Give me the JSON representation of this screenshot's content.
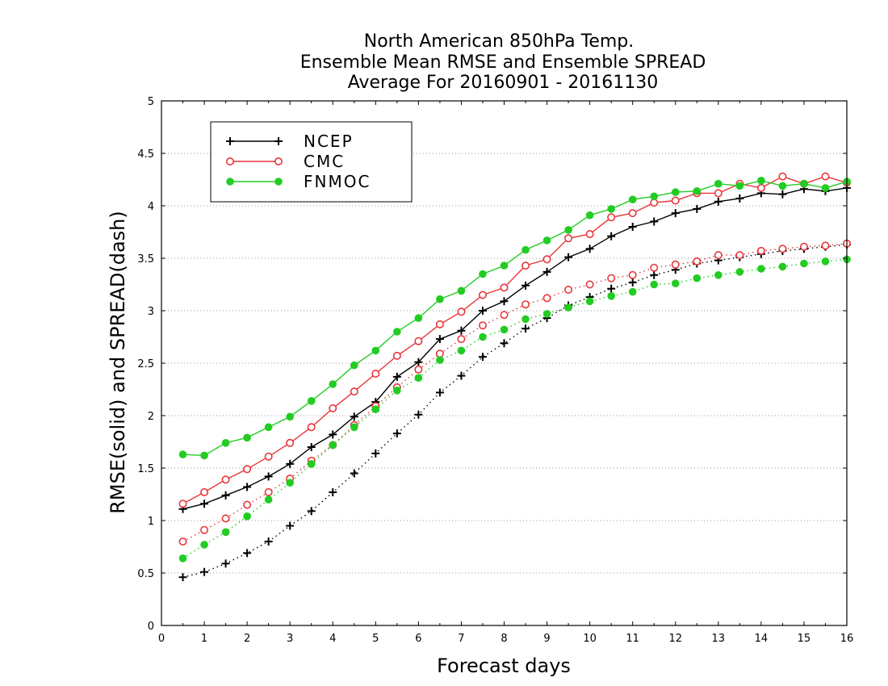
{
  "chart_data": {
    "type": "line",
    "title": [
      "North American 850hPa Temp.",
      "Ensemble Mean RMSE and Ensemble SPREAD",
      "Average For 20160901 - 20161130"
    ],
    "xlabel": "Forecast days",
    "ylabel": "RMSE(solid) and SPREAD(dash)",
    "xlim": [
      0,
      16
    ],
    "ylim": [
      0,
      5
    ],
    "xticks": [
      0,
      1,
      2,
      3,
      4,
      5,
      6,
      7,
      8,
      9,
      10,
      11,
      12,
      13,
      14,
      15,
      16
    ],
    "yticks": [
      0,
      0.5,
      1,
      1.5,
      2,
      2.5,
      3,
      3.5,
      4,
      4.5,
      5
    ],
    "ytick_labels": [
      "0",
      "0.5",
      "1",
      "1.5",
      "2",
      "2.5",
      "3",
      "3.5",
      "4",
      "4.5",
      "5"
    ],
    "grid": "horizontal dotted",
    "legend_position": "top-left",
    "x": [
      0.5,
      1,
      1.5,
      2,
      2.5,
      3,
      3.5,
      4,
      4.5,
      5,
      5.5,
      6,
      6.5,
      7,
      7.5,
      8,
      8.5,
      9,
      9.5,
      10,
      10.5,
      11,
      11.5,
      12,
      12.5,
      13,
      13.5,
      14,
      14.5,
      15,
      15.5,
      16
    ],
    "series": [
      {
        "name": "NCEP",
        "metric": "RMSE",
        "color": "#000000",
        "marker": "plus",
        "line": "solid",
        "values": [
          1.11,
          1.16,
          1.24,
          1.32,
          1.42,
          1.54,
          1.7,
          1.82,
          1.99,
          2.13,
          2.37,
          2.51,
          2.73,
          2.81,
          3.0,
          3.09,
          3.24,
          3.37,
          3.51,
          3.59,
          3.71,
          3.8,
          3.85,
          3.93,
          3.97,
          4.04,
          4.07,
          4.12,
          4.11,
          4.16,
          4.14,
          4.17
        ]
      },
      {
        "name": "CMC",
        "metric": "RMSE",
        "color": "#e8353a",
        "marker": "circle",
        "line": "solid",
        "values": [
          1.16,
          1.27,
          1.39,
          1.49,
          1.61,
          1.74,
          1.89,
          2.07,
          2.23,
          2.4,
          2.57,
          2.71,
          2.87,
          2.99,
          3.15,
          3.22,
          3.43,
          3.49,
          3.69,
          3.73,
          3.89,
          3.93,
          4.03,
          4.05,
          4.12,
          4.12,
          4.21,
          4.17,
          4.28,
          4.21,
          4.28,
          4.22
        ]
      },
      {
        "name": "FNMOC",
        "metric": "RMSE",
        "color": "#22cc22",
        "marker": "filled-circle",
        "line": "solid",
        "values": [
          1.63,
          1.62,
          1.74,
          1.79,
          1.89,
          1.99,
          2.14,
          2.3,
          2.48,
          2.62,
          2.8,
          2.93,
          3.11,
          3.19,
          3.35,
          3.43,
          3.58,
          3.67,
          3.77,
          3.91,
          3.97,
          4.06,
          4.09,
          4.13,
          4.14,
          4.21,
          4.19,
          4.24,
          4.19,
          4.21,
          4.17,
          4.23
        ]
      },
      {
        "name": "NCEP",
        "metric": "SPREAD",
        "color": "#000000",
        "marker": "plus",
        "line": "dash",
        "values": [
          0.46,
          0.51,
          0.59,
          0.69,
          0.8,
          0.95,
          1.09,
          1.27,
          1.45,
          1.64,
          1.83,
          2.01,
          2.22,
          2.38,
          2.56,
          2.69,
          2.83,
          2.93,
          3.05,
          3.13,
          3.21,
          3.27,
          3.34,
          3.39,
          3.45,
          3.48,
          3.51,
          3.54,
          3.57,
          3.59,
          3.61,
          3.63
        ]
      },
      {
        "name": "CMC",
        "metric": "SPREAD",
        "color": "#e8353a",
        "marker": "circle",
        "line": "dash",
        "values": [
          0.8,
          0.91,
          1.02,
          1.15,
          1.27,
          1.4,
          1.57,
          1.72,
          1.91,
          2.09,
          2.27,
          2.44,
          2.59,
          2.73,
          2.86,
          2.96,
          3.06,
          3.12,
          3.2,
          3.25,
          3.31,
          3.34,
          3.41,
          3.44,
          3.47,
          3.53,
          3.53,
          3.57,
          3.59,
          3.61,
          3.62,
          3.64
        ]
      },
      {
        "name": "FNMOC",
        "metric": "SPREAD",
        "color": "#22cc22",
        "marker": "filled-circle",
        "line": "dash",
        "values": [
          0.64,
          0.77,
          0.89,
          1.04,
          1.2,
          1.36,
          1.54,
          1.72,
          1.89,
          2.06,
          2.24,
          2.36,
          2.53,
          2.62,
          2.75,
          2.82,
          2.92,
          2.97,
          3.03,
          3.09,
          3.14,
          3.18,
          3.25,
          3.26,
          3.31,
          3.34,
          3.37,
          3.4,
          3.42,
          3.45,
          3.47,
          3.49
        ]
      }
    ],
    "legend": [
      {
        "label": "NCEP",
        "color": "#000000",
        "marker": "plus"
      },
      {
        "label": "CMC",
        "color": "#e8353a",
        "marker": "circle"
      },
      {
        "label": "FNMOC",
        "color": "#22cc22",
        "marker": "filled-circle"
      }
    ]
  }
}
